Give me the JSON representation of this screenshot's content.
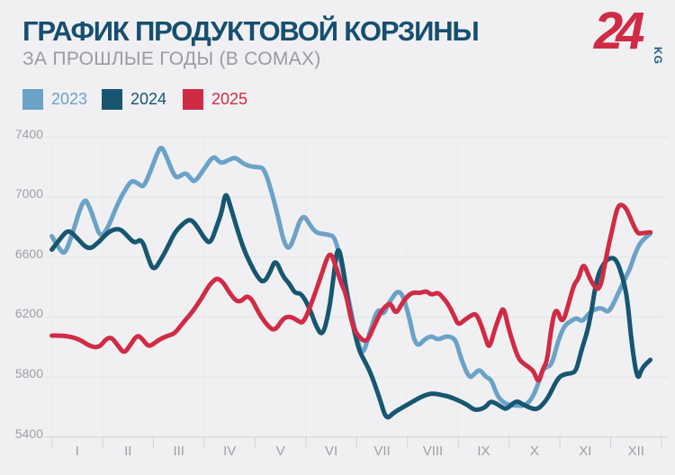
{
  "header": {
    "title": "ГРАФИК ПРОДУКТОВОЙ КОРЗИНЫ",
    "subtitle": "ЗА ПРОШЛЫЕ ГОДЫ (В СОМАХ)",
    "logo_text": "24",
    "logo_suffix": "KG"
  },
  "palette": {
    "background": "#f0f0f2",
    "title": "#174f70",
    "subtitle": "#9b9ba0",
    "axis_text": "#9fa0a3",
    "gridline": "#e4e4e7",
    "axis_line": "#d3d3d6",
    "logo_red": "#d02b45",
    "logo_kg_blue": "#1d5b77"
  },
  "chart_data": {
    "type": "line",
    "title": "ГРАФИК ПРОДУКТОВОЙ КОРЗИНЫ",
    "subtitle": "ЗА ПРОШЛЫЕ ГОДЫ (В СОМАХ)",
    "unit": "сом",
    "ylim": [
      5400,
      7400
    ],
    "y_ticks": [
      7400,
      7000,
      6600,
      6200,
      5800,
      5400
    ],
    "x_ticks": [
      "I",
      "II",
      "III",
      "IV",
      "V",
      "VI",
      "VII",
      "VIII",
      "IX",
      "X",
      "XI",
      "XII"
    ],
    "x_axis_note": "months of year, Roman numerals",
    "grid": true,
    "legend_position": "top-left",
    "series": [
      {
        "name": "2023",
        "color": "#6aa2c8",
        "points": [
          [
            0.0,
            6740
          ],
          [
            0.16,
            6645
          ],
          [
            0.26,
            6620
          ],
          [
            0.4,
            6750
          ],
          [
            0.63,
            7005
          ],
          [
            0.75,
            6930
          ],
          [
            0.84,
            6840
          ],
          [
            0.96,
            6726
          ],
          [
            1.11,
            6800
          ],
          [
            1.28,
            6945
          ],
          [
            1.46,
            7060
          ],
          [
            1.58,
            7115
          ],
          [
            1.72,
            7085
          ],
          [
            1.81,
            7066
          ],
          [
            1.95,
            7180
          ],
          [
            2.07,
            7290
          ],
          [
            2.16,
            7346
          ],
          [
            2.28,
            7250
          ],
          [
            2.39,
            7156
          ],
          [
            2.47,
            7126
          ],
          [
            2.63,
            7166
          ],
          [
            2.72,
            7130
          ],
          [
            2.81,
            7096
          ],
          [
            3.0,
            7190
          ],
          [
            3.18,
            7277
          ],
          [
            3.28,
            7240
          ],
          [
            3.35,
            7226
          ],
          [
            3.49,
            7250
          ],
          [
            3.61,
            7266
          ],
          [
            3.74,
            7230
          ],
          [
            3.88,
            7206
          ],
          [
            4.05,
            7200
          ],
          [
            4.18,
            7196
          ],
          [
            4.35,
            7006
          ],
          [
            4.47,
            6846
          ],
          [
            4.56,
            6706
          ],
          [
            4.67,
            6646
          ],
          [
            4.79,
            6750
          ],
          [
            4.88,
            6846
          ],
          [
            4.97,
            6876
          ],
          [
            5.07,
            6820
          ],
          [
            5.19,
            6765
          ],
          [
            5.32,
            6755
          ],
          [
            5.44,
            6750
          ],
          [
            5.58,
            6736
          ],
          [
            5.72,
            6516
          ],
          [
            5.84,
            6316
          ],
          [
            6.02,
            6036
          ],
          [
            6.12,
            5940
          ],
          [
            6.26,
            6100
          ],
          [
            6.42,
            6266
          ],
          [
            6.53,
            6210
          ],
          [
            6.63,
            6296
          ],
          [
            6.86,
            6402
          ],
          [
            7.04,
            6196
          ],
          [
            7.12,
            6055
          ],
          [
            7.21,
            6005
          ],
          [
            7.33,
            6050
          ],
          [
            7.47,
            6076
          ],
          [
            7.6,
            6046
          ],
          [
            7.77,
            6076
          ],
          [
            7.95,
            6055
          ],
          [
            8.04,
            5936
          ],
          [
            8.21,
            5790
          ],
          [
            8.32,
            5820
          ],
          [
            8.42,
            5855
          ],
          [
            8.54,
            5800
          ],
          [
            8.65,
            5785
          ],
          [
            8.77,
            5670
          ],
          [
            8.91,
            5625
          ],
          [
            9.04,
            5612
          ],
          [
            9.18,
            5608
          ],
          [
            9.32,
            5610
          ],
          [
            9.46,
            5660
          ],
          [
            9.58,
            5760
          ],
          [
            9.65,
            5845
          ],
          [
            9.75,
            5870
          ],
          [
            9.84,
            5880
          ],
          [
            9.96,
            6036
          ],
          [
            10.09,
            6146
          ],
          [
            10.23,
            6176
          ],
          [
            10.33,
            6196
          ],
          [
            10.44,
            6166
          ],
          [
            10.58,
            6230
          ],
          [
            10.72,
            6256
          ],
          [
            10.84,
            6260
          ],
          [
            10.96,
            6226
          ],
          [
            11.11,
            6330
          ],
          [
            11.28,
            6456
          ],
          [
            11.39,
            6530
          ],
          [
            11.46,
            6606
          ],
          [
            11.58,
            6700
          ],
          [
            11.78,
            6756
          ]
        ]
      },
      {
        "name": "2024",
        "color": "#175671",
        "points": [
          [
            0.0,
            6650
          ],
          [
            0.16,
            6720
          ],
          [
            0.32,
            6786
          ],
          [
            0.49,
            6730
          ],
          [
            0.72,
            6645
          ],
          [
            0.93,
            6700
          ],
          [
            1.11,
            6770
          ],
          [
            1.33,
            6795
          ],
          [
            1.49,
            6740
          ],
          [
            1.63,
            6690
          ],
          [
            1.77,
            6725
          ],
          [
            1.89,
            6600
          ],
          [
            2.0,
            6505
          ],
          [
            2.16,
            6590
          ],
          [
            2.3,
            6680
          ],
          [
            2.42,
            6766
          ],
          [
            2.6,
            6830
          ],
          [
            2.74,
            6856
          ],
          [
            2.89,
            6790
          ],
          [
            3.0,
            6726
          ],
          [
            3.12,
            6686
          ],
          [
            3.25,
            6810
          ],
          [
            3.35,
            6906
          ],
          [
            3.42,
            7046
          ],
          [
            3.53,
            6920
          ],
          [
            3.65,
            6786
          ],
          [
            3.77,
            6660
          ],
          [
            3.9,
            6560
          ],
          [
            4.05,
            6466
          ],
          [
            4.17,
            6427
          ],
          [
            4.3,
            6500
          ],
          [
            4.4,
            6590
          ],
          [
            4.55,
            6470
          ],
          [
            4.67,
            6427
          ],
          [
            4.79,
            6356
          ],
          [
            4.91,
            6362
          ],
          [
            5.09,
            6246
          ],
          [
            5.19,
            6146
          ],
          [
            5.33,
            6066
          ],
          [
            5.46,
            6246
          ],
          [
            5.54,
            6456
          ],
          [
            5.63,
            6696
          ],
          [
            5.74,
            6520
          ],
          [
            5.84,
            6276
          ],
          [
            5.96,
            6096
          ],
          [
            6.05,
            5976
          ],
          [
            6.16,
            5905
          ],
          [
            6.28,
            5825
          ],
          [
            6.46,
            5650
          ],
          [
            6.58,
            5515
          ],
          [
            6.72,
            5560
          ],
          [
            6.89,
            5595
          ],
          [
            7.07,
            5630
          ],
          [
            7.25,
            5665
          ],
          [
            7.42,
            5688
          ],
          [
            7.54,
            5690
          ],
          [
            7.68,
            5680
          ],
          [
            7.82,
            5670
          ],
          [
            8.0,
            5645
          ],
          [
            8.18,
            5615
          ],
          [
            8.33,
            5576
          ],
          [
            8.53,
            5595
          ],
          [
            8.63,
            5640
          ],
          [
            8.74,
            5625
          ],
          [
            8.88,
            5595
          ],
          [
            8.95,
            5585
          ],
          [
            9.14,
            5645
          ],
          [
            9.26,
            5620
          ],
          [
            9.44,
            5590
          ],
          [
            9.56,
            5585
          ],
          [
            9.67,
            5620
          ],
          [
            9.79,
            5675
          ],
          [
            9.96,
            5795
          ],
          [
            10.09,
            5820
          ],
          [
            10.23,
            5825
          ],
          [
            10.32,
            5840
          ],
          [
            10.42,
            5975
          ],
          [
            10.58,
            6146
          ],
          [
            10.72,
            6456
          ],
          [
            10.86,
            6560
          ],
          [
            10.98,
            6596
          ],
          [
            11.11,
            6590
          ],
          [
            11.25,
            6450
          ],
          [
            11.33,
            6316
          ],
          [
            11.42,
            6000
          ],
          [
            11.53,
            5770
          ],
          [
            11.61,
            5860
          ],
          [
            11.78,
            5915
          ]
        ]
      },
      {
        "name": "2025",
        "color": "#d02b45",
        "points": [
          [
            0.0,
            6076
          ],
          [
            0.23,
            6078
          ],
          [
            0.53,
            6055
          ],
          [
            0.75,
            6005
          ],
          [
            0.93,
            5996
          ],
          [
            1.07,
            6056
          ],
          [
            1.18,
            6065
          ],
          [
            1.3,
            6010
          ],
          [
            1.42,
            5956
          ],
          [
            1.54,
            6010
          ],
          [
            1.67,
            6080
          ],
          [
            1.77,
            6060
          ],
          [
            1.89,
            6005
          ],
          [
            1.98,
            6015
          ],
          [
            2.11,
            6050
          ],
          [
            2.28,
            6076
          ],
          [
            2.42,
            6090
          ],
          [
            2.6,
            6170
          ],
          [
            2.77,
            6236
          ],
          [
            2.95,
            6326
          ],
          [
            3.12,
            6426
          ],
          [
            3.3,
            6472
          ],
          [
            3.56,
            6327
          ],
          [
            3.7,
            6296
          ],
          [
            3.88,
            6356
          ],
          [
            4.09,
            6216
          ],
          [
            4.25,
            6140
          ],
          [
            4.39,
            6106
          ],
          [
            4.56,
            6196
          ],
          [
            4.7,
            6205
          ],
          [
            4.84,
            6175
          ],
          [
            4.96,
            6156
          ],
          [
            5.19,
            6366
          ],
          [
            5.32,
            6496
          ],
          [
            5.47,
            6645
          ],
          [
            5.58,
            6550
          ],
          [
            5.7,
            6420
          ],
          [
            5.79,
            6356
          ],
          [
            5.91,
            6150
          ],
          [
            6.02,
            6076
          ],
          [
            6.19,
            6026
          ],
          [
            6.33,
            6130
          ],
          [
            6.46,
            6226
          ],
          [
            6.56,
            6270
          ],
          [
            6.67,
            6296
          ],
          [
            6.77,
            6216
          ],
          [
            6.89,
            6290
          ],
          [
            7.0,
            6340
          ],
          [
            7.11,
            6366
          ],
          [
            7.25,
            6360
          ],
          [
            7.37,
            6375
          ],
          [
            7.47,
            6346
          ],
          [
            7.6,
            6366
          ],
          [
            7.7,
            6330
          ],
          [
            7.82,
            6276
          ],
          [
            7.93,
            6200
          ],
          [
            8.0,
            6146
          ],
          [
            8.12,
            6180
          ],
          [
            8.25,
            6210
          ],
          [
            8.35,
            6226
          ],
          [
            8.46,
            6140
          ],
          [
            8.54,
            6055
          ],
          [
            8.61,
            5986
          ],
          [
            8.72,
            6120
          ],
          [
            8.82,
            6216
          ],
          [
            8.89,
            6270
          ],
          [
            8.98,
            6140
          ],
          [
            9.05,
            6056
          ],
          [
            9.18,
            5925
          ],
          [
            9.28,
            5890
          ],
          [
            9.39,
            5866
          ],
          [
            9.49,
            5836
          ],
          [
            9.58,
            5755
          ],
          [
            9.67,
            5860
          ],
          [
            9.75,
            5905
          ],
          [
            9.84,
            6156
          ],
          [
            9.93,
            6271
          ],
          [
            10.05,
            6146
          ],
          [
            10.18,
            6300
          ],
          [
            10.28,
            6420
          ],
          [
            10.37,
            6456
          ],
          [
            10.46,
            6565
          ],
          [
            10.56,
            6480
          ],
          [
            10.67,
            6406
          ],
          [
            10.79,
            6376
          ],
          [
            10.91,
            6600
          ],
          [
            11.04,
            6800
          ],
          [
            11.12,
            6920
          ],
          [
            11.19,
            6956
          ],
          [
            11.3,
            6930
          ],
          [
            11.39,
            6860
          ],
          [
            11.47,
            6796
          ],
          [
            11.54,
            6756
          ],
          [
            11.61,
            6760
          ],
          [
            11.78,
            6766
          ]
        ]
      }
    ]
  }
}
